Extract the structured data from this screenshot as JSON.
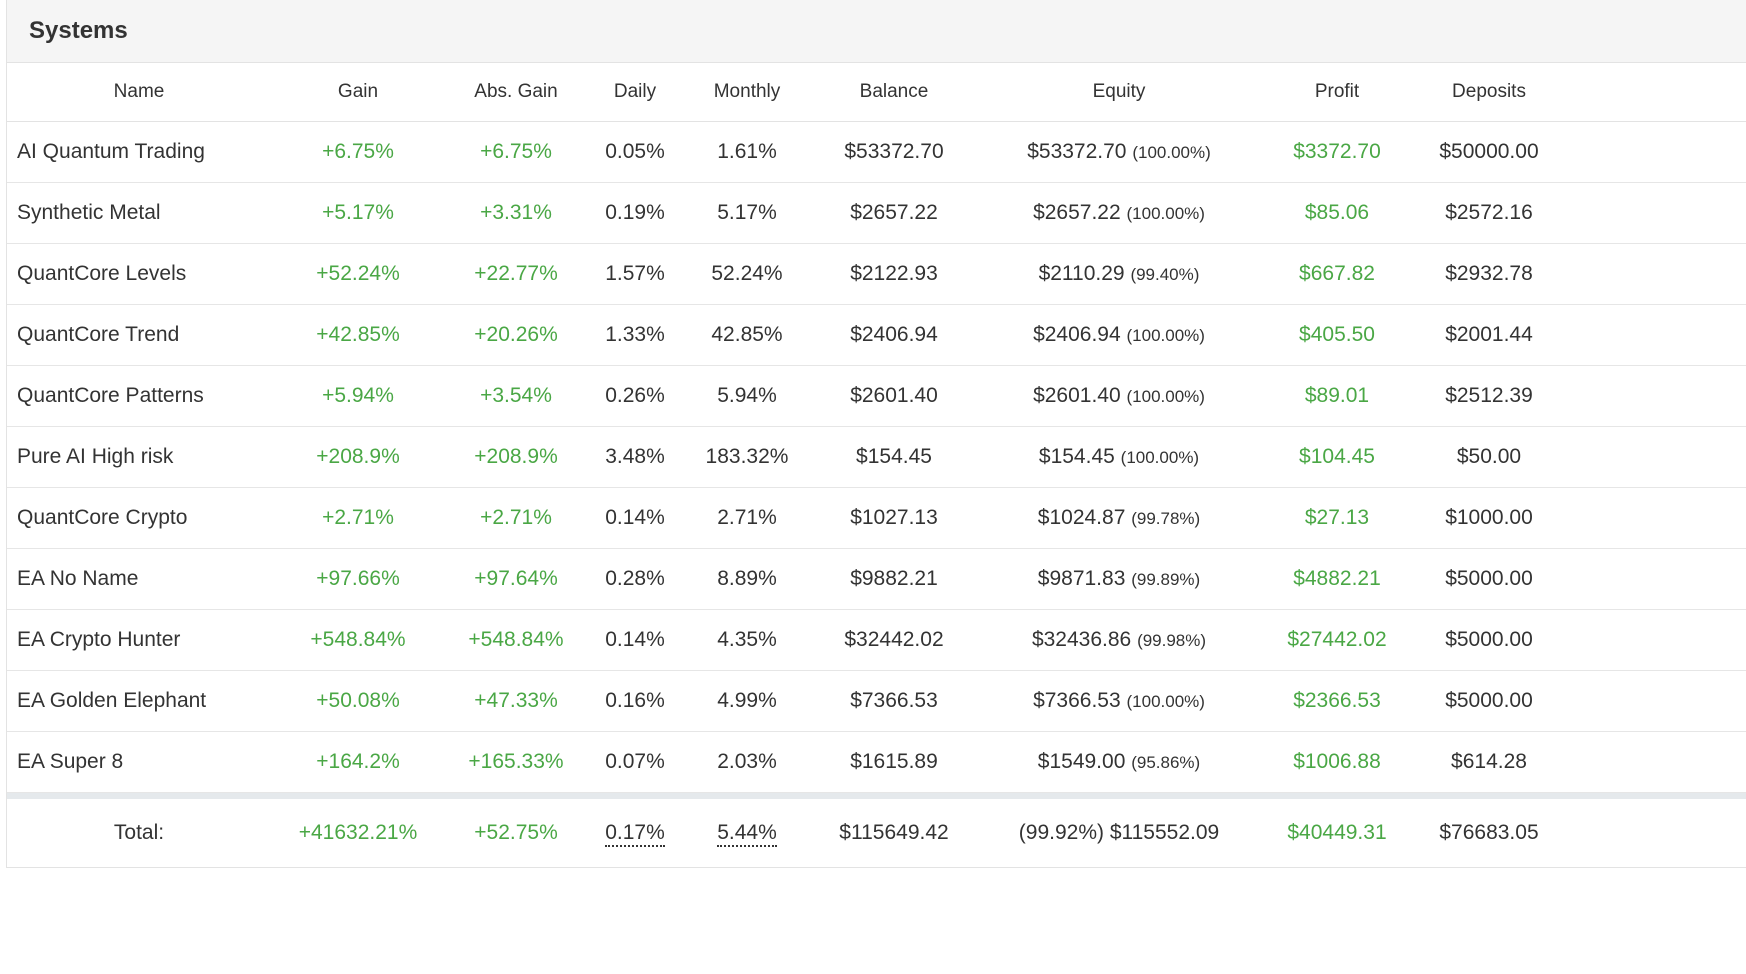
{
  "panel": {
    "title": "Systems"
  },
  "columns": {
    "name": "Name",
    "gain": "Gain",
    "abs_gain": "Abs. Gain",
    "daily": "Daily",
    "monthly": "Monthly",
    "balance": "Balance",
    "equity": "Equity",
    "profit": "Profit",
    "deposits": "Deposits"
  },
  "rows": [
    {
      "name": "AI Quantum Trading",
      "gain": "+6.75%",
      "abs_gain": "+6.75%",
      "daily": "0.05%",
      "monthly": "1.61%",
      "balance": "$53372.70",
      "equity": "$53372.70",
      "equity_pct": "(100.00%)",
      "profit": "$3372.70",
      "deposits": "$50000.00"
    },
    {
      "name": "Synthetic Metal",
      "gain": "+5.17%",
      "abs_gain": "+3.31%",
      "daily": "0.19%",
      "monthly": "5.17%",
      "balance": "$2657.22",
      "equity": "$2657.22",
      "equity_pct": "(100.00%)",
      "profit": "$85.06",
      "deposits": "$2572.16"
    },
    {
      "name": "QuantCore Levels",
      "gain": "+52.24%",
      "abs_gain": "+22.77%",
      "daily": "1.57%",
      "monthly": "52.24%",
      "balance": "$2122.93",
      "equity": "$2110.29",
      "equity_pct": "(99.40%)",
      "profit": "$667.82",
      "deposits": "$2932.78"
    },
    {
      "name": "QuantCore Trend",
      "gain": "+42.85%",
      "abs_gain": "+20.26%",
      "daily": "1.33%",
      "monthly": "42.85%",
      "balance": "$2406.94",
      "equity": "$2406.94",
      "equity_pct": "(100.00%)",
      "profit": "$405.50",
      "deposits": "$2001.44"
    },
    {
      "name": "QuantCore Patterns",
      "gain": "+5.94%",
      "abs_gain": "+3.54%",
      "daily": "0.26%",
      "monthly": "5.94%",
      "balance": "$2601.40",
      "equity": "$2601.40",
      "equity_pct": "(100.00%)",
      "profit": "$89.01",
      "deposits": "$2512.39"
    },
    {
      "name": "Pure AI High risk",
      "gain": "+208.9%",
      "abs_gain": "+208.9%",
      "daily": "3.48%",
      "monthly": "183.32%",
      "balance": "$154.45",
      "equity": "$154.45",
      "equity_pct": "(100.00%)",
      "profit": "$104.45",
      "deposits": "$50.00"
    },
    {
      "name": "QuantCore Crypto",
      "gain": "+2.71%",
      "abs_gain": "+2.71%",
      "daily": "0.14%",
      "monthly": "2.71%",
      "balance": "$1027.13",
      "equity": "$1024.87",
      "equity_pct": "(99.78%)",
      "profit": "$27.13",
      "deposits": "$1000.00"
    },
    {
      "name": "EA No Name",
      "gain": "+97.66%",
      "abs_gain": "+97.64%",
      "daily": "0.28%",
      "monthly": "8.89%",
      "balance": "$9882.21",
      "equity": "$9871.83",
      "equity_pct": "(99.89%)",
      "profit": "$4882.21",
      "deposits": "$5000.00"
    },
    {
      "name": "EA Crypto Hunter",
      "gain": "+548.84%",
      "abs_gain": "+548.84%",
      "daily": "0.14%",
      "monthly": "4.35%",
      "balance": "$32442.02",
      "equity": "$32436.86",
      "equity_pct": "(99.98%)",
      "profit": "$27442.02",
      "deposits": "$5000.00"
    },
    {
      "name": "EA Golden Elephant",
      "gain": "+50.08%",
      "abs_gain": "+47.33%",
      "daily": "0.16%",
      "monthly": "4.99%",
      "balance": "$7366.53",
      "equity": "$7366.53",
      "equity_pct": "(100.00%)",
      "profit": "$2366.53",
      "deposits": "$5000.00"
    },
    {
      "name": "EA Super 8",
      "gain": "+164.2%",
      "abs_gain": "+165.33%",
      "daily": "0.07%",
      "monthly": "2.03%",
      "balance": "$1615.89",
      "equity": "$1549.00",
      "equity_pct": "(95.86%)",
      "profit": "$1006.88",
      "deposits": "$614.28"
    }
  ],
  "total": {
    "label": "Total:",
    "gain": "+41632.21%",
    "abs_gain": "+52.75%",
    "daily": "0.17%",
    "monthly": "5.44%",
    "balance": "$115649.42",
    "equity": "(99.92%) $115552.09",
    "profit": "$40449.31",
    "deposits": "$76683.05"
  },
  "colors": {
    "positive": "#4aa745",
    "text": "#333333",
    "header_bg": "#f5f5f5"
  }
}
